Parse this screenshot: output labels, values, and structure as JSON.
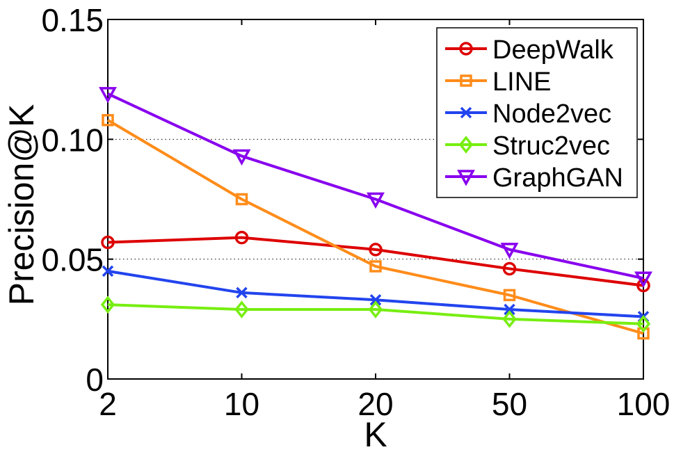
{
  "chart_data": {
    "type": "line",
    "title": "",
    "xlabel": "K",
    "ylabel": "Precision@K",
    "categories": [
      "2",
      "10",
      "20",
      "50",
      "100"
    ],
    "ylim": [
      0,
      0.15
    ],
    "yticks": [
      0,
      0.05,
      0.1,
      0.15
    ],
    "ytick_labels": [
      "0",
      "0.05",
      "0.10",
      "0.15"
    ],
    "grid": "horizontal dotted",
    "legend_position": "top-right",
    "series": [
      {
        "name": "DeepWalk",
        "color": "#dd0000",
        "marker": "circle",
        "values": [
          0.057,
          0.059,
          0.054,
          0.046,
          0.039
        ]
      },
      {
        "name": "LINE",
        "color": "#ff8c1a",
        "marker": "square",
        "values": [
          0.108,
          0.075,
          0.047,
          0.035,
          0.019
        ]
      },
      {
        "name": "Node2vec",
        "color": "#2244ee",
        "marker": "x",
        "values": [
          0.045,
          0.036,
          0.033,
          0.029,
          0.026
        ]
      },
      {
        "name": "Struc2vec",
        "color": "#77ee11",
        "marker": "diamond",
        "values": [
          0.031,
          0.029,
          0.029,
          0.025,
          0.023
        ]
      },
      {
        "name": "GraphGAN",
        "color": "#8800ee",
        "marker": "triangle-down",
        "values": [
          0.119,
          0.093,
          0.075,
          0.054,
          0.042
        ]
      }
    ]
  }
}
